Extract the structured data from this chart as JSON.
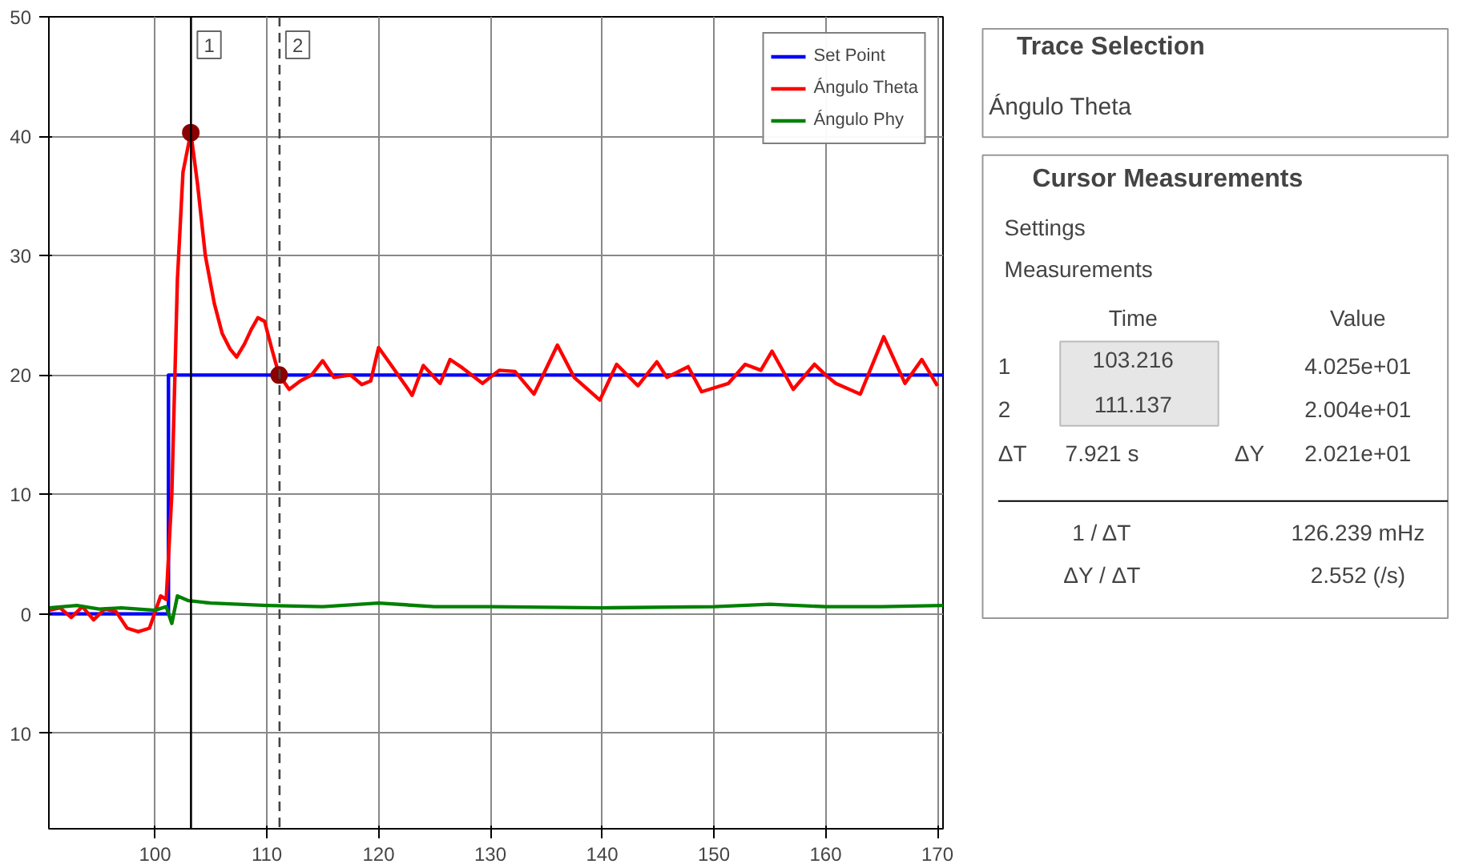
{
  "chart_data": [
    {
      "type": "line",
      "xlim": [
        90.5,
        170.5
      ],
      "ylim": [
        -18,
        50
      ],
      "xticks": [
        100,
        110,
        120,
        130,
        140,
        150,
        160,
        170
      ],
      "yticks": [
        {
          "value": -10,
          "label": "10"
        },
        0,
        10,
        20,
        30,
        40,
        50
      ],
      "grid": true,
      "legend": "top right",
      "series": [
        {
          "name": "Set Point",
          "color": "#0000ff",
          "x": [
            90.5,
            101.2,
            101.2,
            170.5
          ],
          "values": [
            0,
            0,
            20,
            20
          ]
        },
        {
          "name": "Ángulo Theta",
          "color": "#ff0000",
          "x": [
            90.5,
            91.5,
            92.5,
            93.5,
            94.5,
            95.5,
            96.5,
            97.5,
            98.5,
            99.5,
            100.5,
            101.0,
            101.5,
            102.0,
            102.5,
            103.2,
            103.8,
            104.5,
            105.3,
            106.0,
            106.7,
            107.3,
            108.0,
            108.6,
            109.2,
            109.8,
            110.5,
            111.1,
            112.0,
            113.0,
            114.0,
            115.0,
            116.0,
            117.5,
            118.5,
            119.3,
            120.0,
            121.0,
            122.5,
            123.0,
            124.0,
            125.5,
            126.4,
            127.5,
            129.3,
            130.8,
            132.2,
            133.9,
            136.0,
            137.5,
            139.8,
            141.3,
            143.2,
            144.9,
            145.8,
            147.7,
            148.9,
            151.3,
            152.8,
            154.2,
            155.2,
            157.1,
            159.0,
            160.0,
            160.9,
            163.1,
            165.2,
            167.1,
            168.6,
            170.0
          ],
          "values": [
            0.3,
            0.5,
            -0.3,
            0.6,
            -0.5,
            0.4,
            0.2,
            -1.2,
            -1.5,
            -1.2,
            1.5,
            1.2,
            10,
            28,
            37,
            40.3,
            36,
            30,
            26,
            23.5,
            22.2,
            21.5,
            22.6,
            23.8,
            24.8,
            24.5,
            22,
            20.0,
            18.8,
            19.5,
            20,
            21.2,
            19.8,
            20,
            19.2,
            19.5,
            22.3,
            21,
            19,
            18.3,
            20.8,
            19.3,
            21.3,
            20.6,
            19.3,
            20.4,
            20.3,
            18.4,
            22.5,
            19.8,
            17.9,
            20.9,
            19.1,
            21.1,
            19.8,
            20.7,
            18.6,
            19.3,
            20.9,
            20.4,
            22,
            18.8,
            20.9,
            20,
            19.3,
            18.4,
            23.2,
            19.3,
            21.3,
            19.1
          ]
        },
        {
          "name": "Ángulo Phy",
          "color": "#008000",
          "x": [
            90.5,
            93,
            95,
            97,
            100,
            101,
            101.5,
            102,
            103,
            105,
            110,
            115,
            120,
            125,
            130,
            140,
            150,
            155,
            160,
            165,
            170.5
          ],
          "values": [
            0.5,
            0.7,
            0.4,
            0.5,
            0.3,
            0.6,
            -0.8,
            1.5,
            1.1,
            0.9,
            0.7,
            0.6,
            0.9,
            0.6,
            0.6,
            0.5,
            0.6,
            0.8,
            0.6,
            0.6,
            0.7
          ]
        },
        {
          "type": "scatter",
          "color": "#8b0000",
          "marker": "circle",
          "x": [
            103.2,
            111.1
          ],
          "values": [
            40.3,
            20.0
          ]
        }
      ],
      "ref_lines": [
        {
          "axis": "x",
          "value": 103.216,
          "color": "#000000",
          "line_style": "solid"
        },
        {
          "axis": "x",
          "value": 111.137,
          "color": "#444444",
          "line_style": "dashed"
        }
      ],
      "annotations": [
        {
          "text": "1",
          "x": 103.216,
          "y": 50
        },
        {
          "text": "2",
          "x": 111.137,
          "y": 50
        }
      ]
    },
    {
      "type": "other",
      "annotations": [
        "Trace Selection",
        "Ángulo Theta",
        "Cursor Measurements",
        "Settings",
        "Measurements",
        "Time",
        "Value",
        "1",
        "103.216",
        "4.025e+01",
        "2",
        "111.137",
        "2.004e+01",
        "ΔT",
        "7.921 s",
        "ΔY",
        "2.021e+01",
        "1 / ΔT",
        "126.239 mHz",
        "ΔY / ΔT",
        "2.552 (/s)"
      ]
    }
  ]
}
